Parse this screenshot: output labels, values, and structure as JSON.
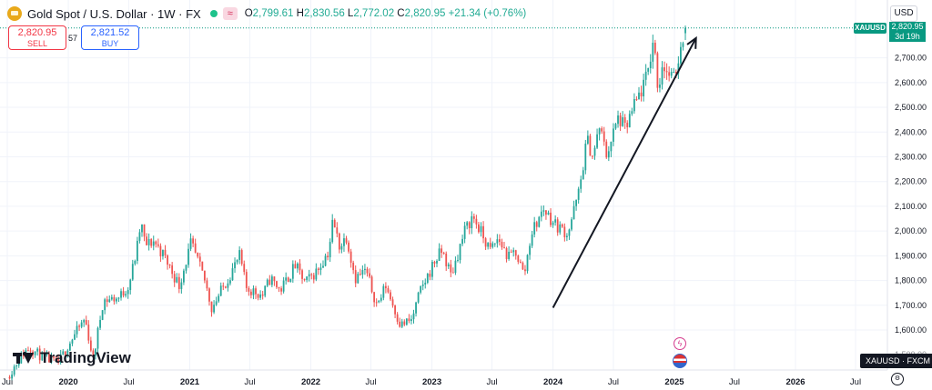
{
  "header": {
    "symbol_title": "Gold Spot / U.S. Dollar · 1W · FX",
    "o_label": "O",
    "o_value": "2,799.61",
    "h_label": "H",
    "h_value": "2,830.56",
    "l_label": "L",
    "l_value": "2,772.02",
    "c_label": "C",
    "c_value": "2,820.95",
    "change": "+21.34 (+0.76%)",
    "logo_icon": "gold-coin-icon",
    "replay_icon": "approx-icon"
  },
  "trade": {
    "sell_price": "2,820.95",
    "sell_label": "SELL",
    "spread": "57",
    "buy_price": "2,821.52",
    "buy_label": "BUY"
  },
  "currency_button": "USD",
  "current_tag": "XAUUSD",
  "current_price": "2,820.95",
  "countdown": "3d 19h",
  "symbol_footer": "XAUUSD · FXCM",
  "brand": "TradingView",
  "colors": {
    "up": "#26a69a",
    "down": "#ef5350",
    "accent": "#089981",
    "sell": "#f23645",
    "buy": "#2962ff"
  },
  "chart_data": {
    "type": "candlestick",
    "series_name": "XAUUSD",
    "y_ticks": [
      1600,
      1700,
      1800,
      1900,
      2000,
      2100,
      2200,
      2300,
      2400,
      2500,
      2600,
      2700
    ],
    "y_tick_labels": [
      "1,600.00",
      "1,700.00",
      "1,800.00",
      "1,900.00",
      "2,000.00",
      "2,100.00",
      "2,200.00",
      "2,300.00",
      "2,400.00",
      "2,500.00",
      "2,600.00",
      "2,700.00"
    ],
    "partial_bottom_label": "1,500.00",
    "ylim": [
      1470,
      2930
    ],
    "x_ticks": [
      "Jul",
      "2020",
      "Jul",
      "2021",
      "Jul",
      "2022",
      "Jul",
      "2023",
      "Jul",
      "2024",
      "Jul",
      "2025",
      "Jul",
      "2026",
      "Jul"
    ],
    "close_path": [
      [
        "2019-07-01",
        1410
      ],
      [
        "2019-08-15",
        1500
      ],
      [
        "2019-09-05",
        1530
      ],
      [
        "2019-10-15",
        1490
      ],
      [
        "2019-12-01",
        1465
      ],
      [
        "2020-01-10",
        1560
      ],
      [
        "2020-02-20",
        1645
      ],
      [
        "2020-03-16",
        1480
      ],
      [
        "2020-04-15",
        1720
      ],
      [
        "2020-06-01",
        1730
      ],
      [
        "2020-07-01",
        1780
      ],
      [
        "2020-07-25",
        1920
      ],
      [
        "2020-08-07",
        2035
      ],
      [
        "2020-08-20",
        1940
      ],
      [
        "2020-09-15",
        1960
      ],
      [
        "2020-10-15",
        1900
      ],
      [
        "2020-11-30",
        1780
      ],
      [
        "2021-01-05",
        1950
      ],
      [
        "2021-02-15",
        1800
      ],
      [
        "2021-03-08",
        1690
      ],
      [
        "2021-04-15",
        1780
      ],
      [
        "2021-06-01",
        1900
      ],
      [
        "2021-06-20",
        1770
      ],
      [
        "2021-08-09",
        1740
      ],
      [
        "2021-09-01",
        1810
      ],
      [
        "2021-10-01",
        1760
      ],
      [
        "2021-11-15",
        1860
      ],
      [
        "2021-12-15",
        1790
      ],
      [
        "2022-01-20",
        1840
      ],
      [
        "2022-02-24",
        1920
      ],
      [
        "2022-03-08",
        2040
      ],
      [
        "2022-03-30",
        1935
      ],
      [
        "2022-04-18",
        1980
      ],
      [
        "2022-05-15",
        1810
      ],
      [
        "2022-06-15",
        1840
      ],
      [
        "2022-07-20",
        1700
      ],
      [
        "2022-08-15",
        1780
      ],
      [
        "2022-09-28",
        1620
      ],
      [
        "2022-11-01",
        1640
      ],
      [
        "2022-11-25",
        1750
      ],
      [
        "2023-01-10",
        1880
      ],
      [
        "2023-02-01",
        1920
      ],
      [
        "2023-02-28",
        1820
      ],
      [
        "2023-04-10",
        2000
      ],
      [
        "2023-05-04",
        2060
      ],
      [
        "2023-06-25",
        1920
      ],
      [
        "2023-07-20",
        1970
      ],
      [
        "2023-08-20",
        1890
      ],
      [
        "2023-09-10",
        1920
      ],
      [
        "2023-10-06",
        1820
      ],
      [
        "2023-10-27",
        1990
      ],
      [
        "2023-12-04",
        2090
      ],
      [
        "2024-01-05",
        2030
      ],
      [
        "2024-02-14",
        1990
      ],
      [
        "2024-03-20",
        2160
      ],
      [
        "2024-04-12",
        2370
      ],
      [
        "2024-05-01",
        2300
      ],
      [
        "2024-05-20",
        2420
      ],
      [
        "2024-06-10",
        2310
      ],
      [
        "2024-07-17",
        2460
      ],
      [
        "2024-08-05",
        2410
      ],
      [
        "2024-09-01",
        2500
      ],
      [
        "2024-10-10",
        2620
      ],
      [
        "2024-10-30",
        2780
      ],
      [
        "2024-11-14",
        2560
      ],
      [
        "2024-11-25",
        2680
      ],
      [
        "2024-12-10",
        2640
      ],
      [
        "2024-12-30",
        2610
      ],
      [
        "2025-01-24",
        2770
      ],
      [
        "2025-02-03",
        2820.95
      ]
    ],
    "annotation": {
      "type": "arrow",
      "from": [
        "2024-01-01",
        1690
      ],
      "to": [
        "2025-03-07",
        2780
      ]
    }
  }
}
